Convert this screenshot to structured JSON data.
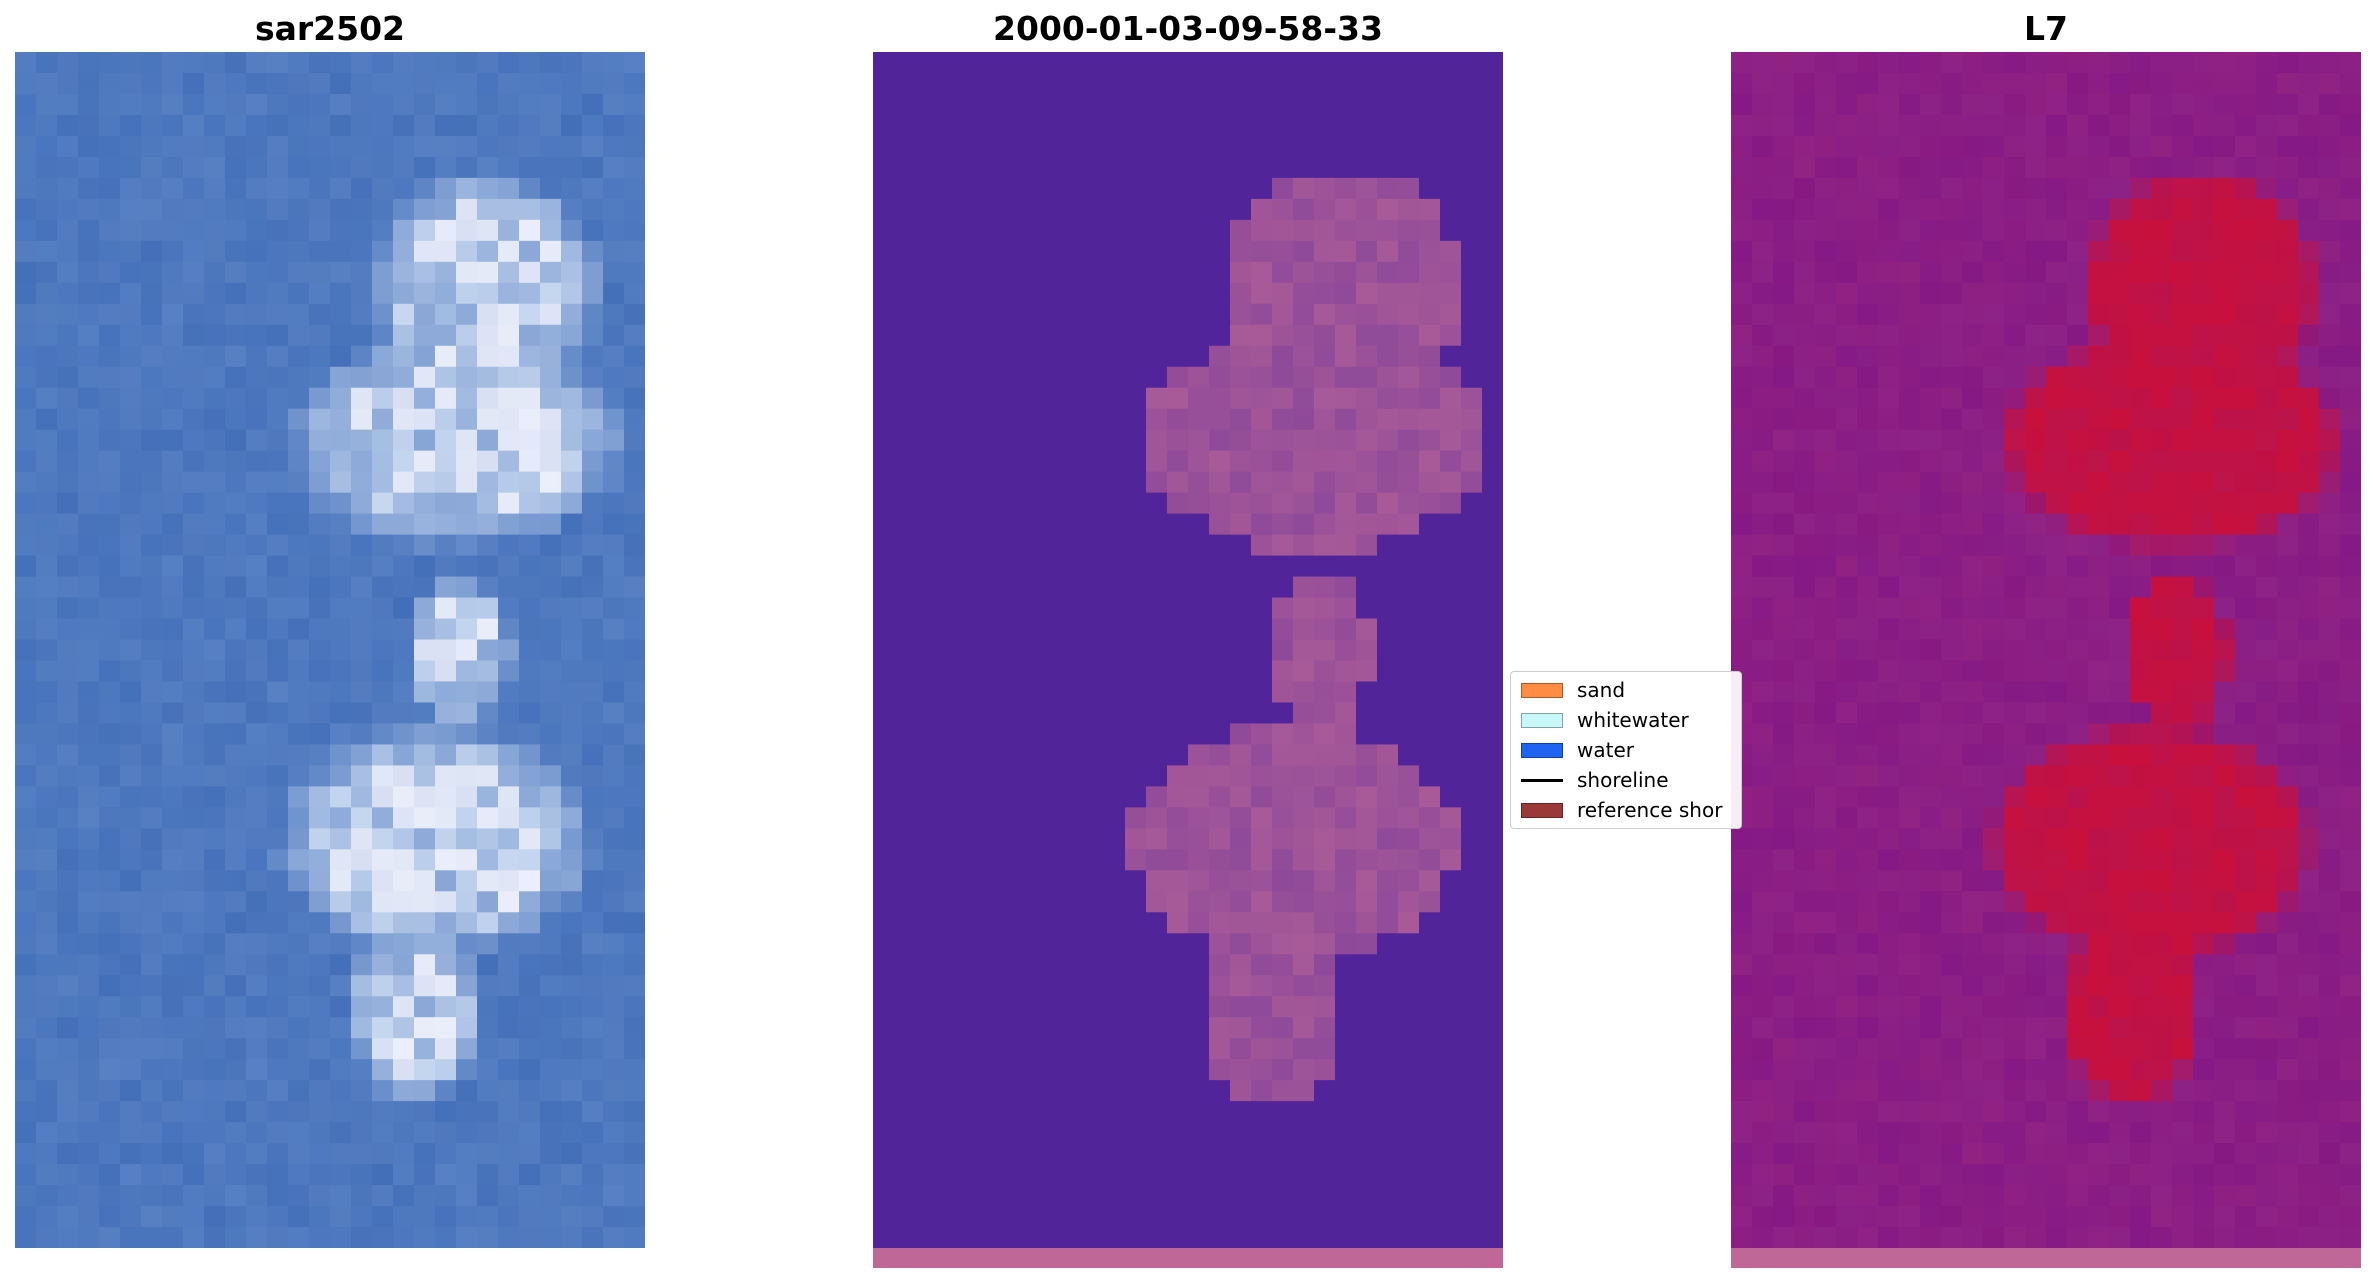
{
  "panels": {
    "left": {
      "title": "sar2502"
    },
    "middle": {
      "title": "2000-01-03-09-58-33"
    },
    "right": {
      "title": "L7"
    }
  },
  "legend": {
    "items": [
      {
        "label": "sand",
        "color": "#ff8c42",
        "kind": "patch"
      },
      {
        "label": "whitewater",
        "color": "#c8f8f8",
        "kind": "patch"
      },
      {
        "label": "water",
        "color": "#1e64f0",
        "kind": "patch"
      },
      {
        "label": "shoreline",
        "color": "#000000",
        "kind": "line"
      },
      {
        "label": "reference shor",
        "color": "#9b3838",
        "kind": "patch"
      }
    ]
  },
  "colors": {
    "sar_water": "#2f5fb0",
    "sar_land": "#c8d8f0",
    "classified_background": "#52249a",
    "classified_land": "#a85a98",
    "mndwi_background": "#7a2aa0",
    "mndwi_land": "#c8103c",
    "bottom_strip": "#bf6898"
  }
}
